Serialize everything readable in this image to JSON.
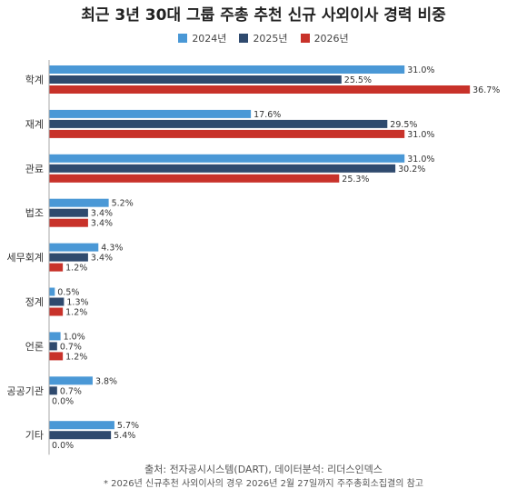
{
  "colors": {
    "2024": "#4a98d6",
    "2025": "#2f4a6e",
    "2026": "#c8322a"
  },
  "chart_data": {
    "type": "bar",
    "orientation": "horizontal",
    "title": "최근 3년 30대 그룹 주총 추천 신규 사외이사 경력 비중",
    "categories": [
      "학계",
      "재계",
      "관료",
      "법조",
      "세무회계",
      "정계",
      "언론",
      "공공기관",
      "기타"
    ],
    "series": [
      {
        "name": "2024년",
        "color_key": "2024",
        "values": [
          31.0,
          17.6,
          31.0,
          5.2,
          4.3,
          0.5,
          1.0,
          3.8,
          5.7
        ]
      },
      {
        "name": "2025년",
        "color_key": "2025",
        "values": [
          25.5,
          29.5,
          30.2,
          3.4,
          3.4,
          1.3,
          0.7,
          0.7,
          5.4
        ]
      },
      {
        "name": "2026년",
        "color_key": "2026",
        "values": [
          36.7,
          31.0,
          25.3,
          3.4,
          1.2,
          1.2,
          1.2,
          0.0,
          0.0
        ]
      }
    ],
    "value_suffix": "%",
    "xlim": [
      0,
      40
    ],
    "grid": false,
    "legend": "top-center"
  },
  "source": "출처: 전자공시시스템(DART), 데이터분석: 리더스인덱스",
  "footnote": "* 2026년 신규추천 사외이사의 경우 2026년 2월 27일까지 주주총회소집결의 참고"
}
